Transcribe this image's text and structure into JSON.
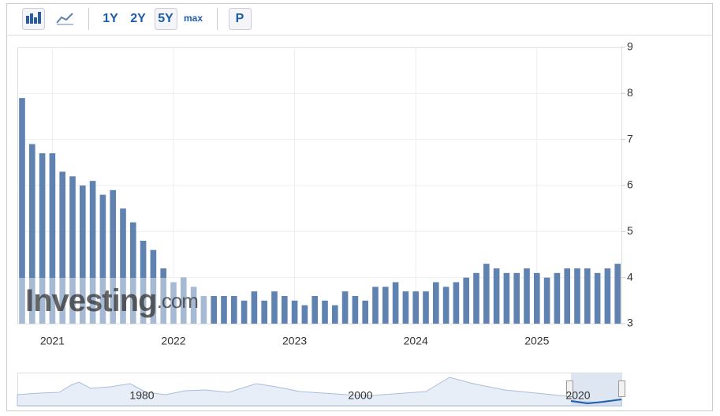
{
  "toolbar": {
    "buttons": [
      "1Y",
      "2Y",
      "5Y",
      "max",
      "P"
    ]
  },
  "chart_data": {
    "type": "bar",
    "categories": [
      null,
      null,
      null,
      "2021",
      null,
      null,
      null,
      null,
      null,
      null,
      null,
      null,
      null,
      null,
      null,
      "2022",
      null,
      null,
      null,
      null,
      null,
      null,
      null,
      null,
      null,
      null,
      null,
      "2023",
      null,
      null,
      null,
      null,
      null,
      null,
      null,
      null,
      null,
      null,
      null,
      "2024",
      null,
      null,
      null,
      null,
      null,
      null,
      null,
      null,
      null,
      null,
      null,
      "2025",
      null,
      null,
      null,
      null,
      null,
      null,
      null,
      null
    ],
    "values": [
      7.9,
      6.9,
      6.7,
      6.7,
      6.3,
      6.2,
      6.0,
      6.1,
      5.8,
      5.9,
      5.5,
      5.2,
      4.8,
      4.6,
      4.2,
      3.9,
      4.0,
      3.8,
      3.6,
      3.6,
      3.6,
      3.6,
      3.5,
      3.7,
      3.5,
      3.7,
      3.6,
      3.5,
      3.4,
      3.6,
      3.5,
      3.4,
      3.7,
      3.6,
      3.5,
      3.8,
      3.8,
      3.9,
      3.7,
      3.7,
      3.7,
      3.9,
      3.8,
      3.9,
      4.0,
      4.1,
      4.3,
      4.2,
      4.1,
      4.1,
      4.2,
      4.1,
      4.0,
      4.1,
      4.2,
      4.2,
      4.2,
      4.1,
      4.2,
      4.3
    ],
    "color": "#5f82b0",
    "ylim": [
      3,
      9
    ],
    "yticks": [
      3,
      4,
      5,
      6,
      7,
      8,
      9
    ],
    "grid": true,
    "watermark": "Investing",
    "watermark_suffix": ".com"
  },
  "navigator": {
    "labels": [
      "1980",
      "2000",
      "2020"
    ]
  }
}
